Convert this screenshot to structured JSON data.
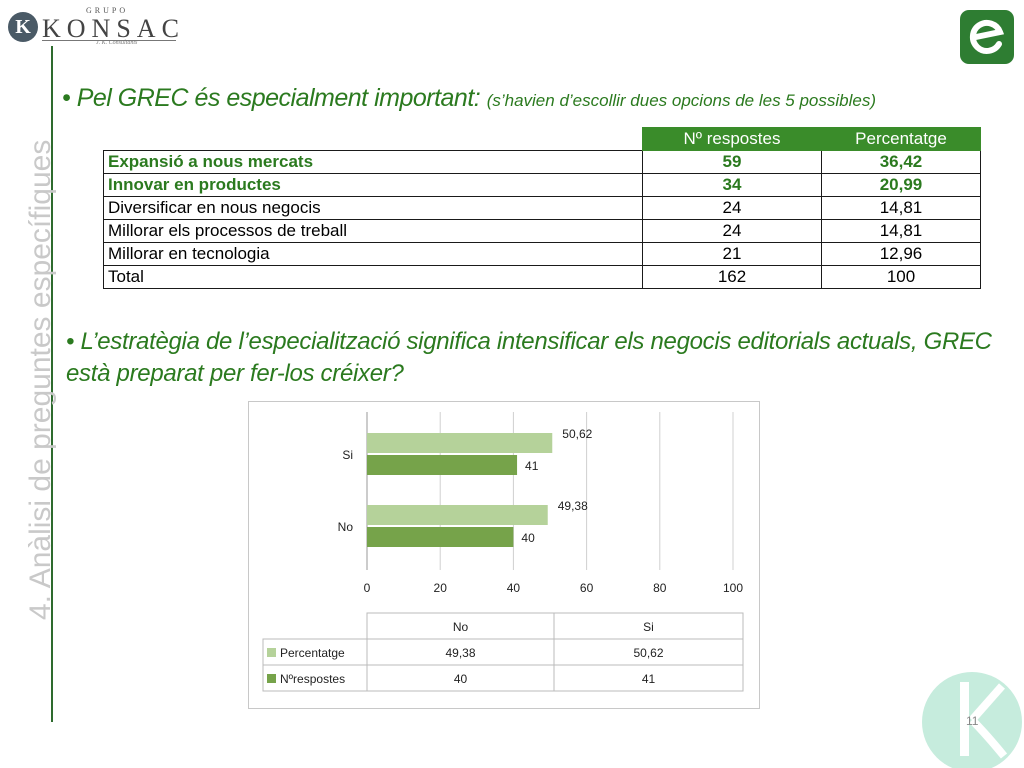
{
  "logo": {
    "grupo": "GRUPO",
    "name": "KONSAC",
    "sub": "J. K. Consultants",
    "mark": "K"
  },
  "side_title": "4. Anàlisi de preguntes específiques",
  "bullet1": {
    "marker": "•",
    "main": "Pel GREC és especialment important:",
    "note": "(s’havien d’escollir dues opcions de les 5 possibles)"
  },
  "table": {
    "headers": [
      "Nº respostes",
      "Percentatge"
    ],
    "rows": [
      {
        "label": "Expansió a nous mercats",
        "count": "59",
        "pct": "36,42"
      },
      {
        "label": "Innovar en productes",
        "count": "34",
        "pct": "20,99"
      },
      {
        "label": "Diversificar en nous negocis",
        "count": "24",
        "pct": "14,81"
      },
      {
        "label": "Millorar els processos de treball",
        "count": "24",
        "pct": "14,81"
      },
      {
        "label": "Millorar en tecnologia",
        "count": "21",
        "pct": "12,96"
      },
      {
        "label": "Total",
        "count": "162",
        "pct": "100"
      }
    ]
  },
  "bullet2": {
    "marker": "•",
    "text": "L’estratègia de l’especialització significa intensificar els negocis editorials   actuals, GREC està preparat per fer-los créixer?"
  },
  "chart_data": {
    "type": "bar",
    "orientation": "horizontal",
    "categories": [
      "Si",
      "No"
    ],
    "series": [
      {
        "name": "Percentatge",
        "values": [
          50.62,
          49.38
        ],
        "labels": [
          "50,62",
          "49,38"
        ],
        "color": "#b5d29a"
      },
      {
        "name": "Nºrespostes",
        "values": [
          41,
          40
        ],
        "labels": [
          "41",
          "40"
        ],
        "color": "#76a34a"
      }
    ],
    "xlim": [
      0,
      100
    ],
    "xticks": [
      "0",
      "20",
      "40",
      "60",
      "80",
      "100"
    ],
    "grid": true,
    "data_table": {
      "columns": [
        "No",
        "Si"
      ],
      "rows": [
        {
          "name": "Percentatge",
          "values": [
            "49,38",
            "50,62"
          ]
        },
        {
          "name": "Nºrespostes",
          "values": [
            "40",
            "41"
          ]
        }
      ]
    }
  },
  "page_number": "11",
  "colors": {
    "accent": "#2b7a1f",
    "header_bg": "#3a8c2a",
    "badge": "#2e7d32",
    "mark": "#c6ecdd"
  }
}
